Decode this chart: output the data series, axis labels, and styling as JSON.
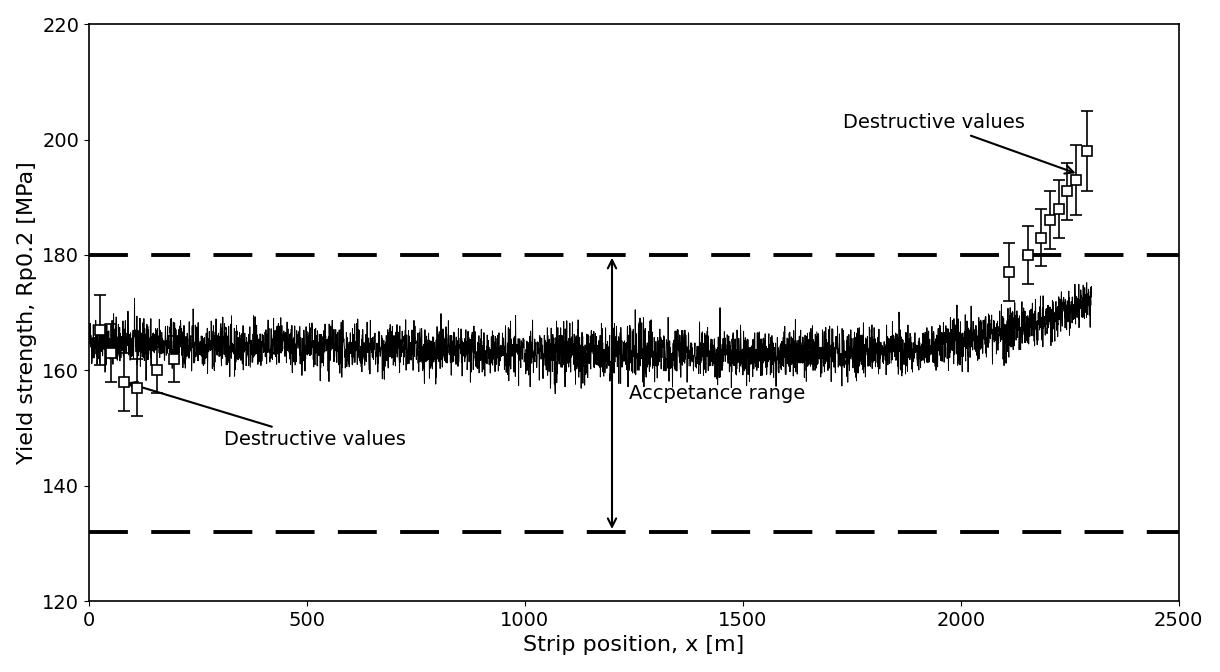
{
  "xlabel": "Strip position, x [m]",
  "ylabel": "Yield strength, Rp0.2 [MPa]",
  "xlim": [
    0,
    2500
  ],
  "ylim": [
    120,
    220
  ],
  "yticks": [
    120,
    140,
    160,
    180,
    200,
    220
  ],
  "xticks": [
    0,
    500,
    1000,
    1500,
    2000,
    2500
  ],
  "upper_limit": 180,
  "lower_limit": 132,
  "acceptance_range_x": 1200,
  "acceptance_range_label": "Accpetance range",
  "destructive_label": "Destructive values",
  "line_color": "black",
  "marker_face": "white",
  "marker_edge": "black",
  "background_color": "white",
  "font_size": 14,
  "destructive_start": {
    "x": [
      25,
      50,
      80,
      110,
      155,
      195
    ],
    "y": [
      167,
      163,
      158,
      157,
      160,
      162
    ],
    "yerr": [
      6,
      5,
      5,
      5,
      4,
      4
    ]
  },
  "destructive_end": {
    "x": [
      2110,
      2155,
      2185,
      2205,
      2225,
      2245,
      2265,
      2290
    ],
    "y": [
      177,
      180,
      183,
      186,
      188,
      191,
      193,
      198
    ],
    "yerr": [
      5,
      5,
      5,
      5,
      5,
      5,
      6,
      7
    ]
  },
  "noise_amplitude": 2.0,
  "random_seed": 42,
  "n_points": 4600,
  "x_max_cont": 2300
}
